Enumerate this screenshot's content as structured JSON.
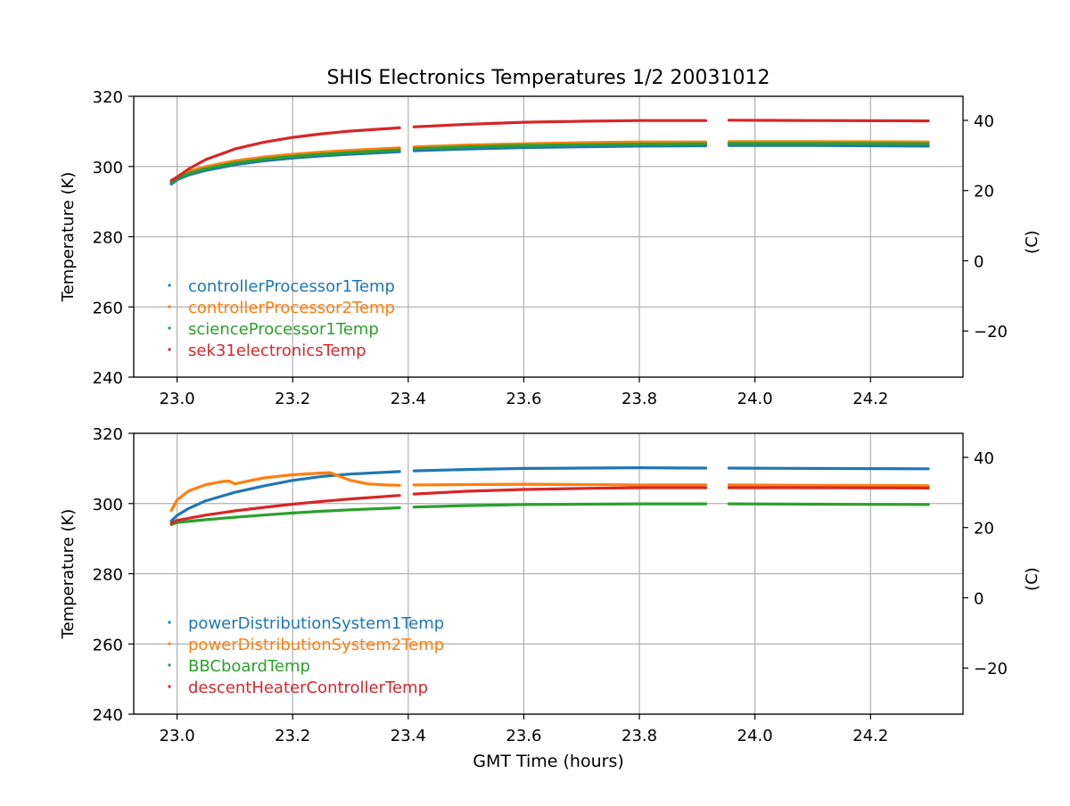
{
  "figure": {
    "title": "SHIS Electronics Temperatures 1/2 20031012",
    "xlabel": "GMT Time (hours)"
  },
  "chart_data": [
    {
      "type": "line",
      "ylabel": "Temperature (K)",
      "ylabel_right": "(C)",
      "xlim": [
        22.925,
        24.36
      ],
      "ylim": [
        240,
        320
      ],
      "ylim_right_celsius": [
        -33.15,
        46.85
      ],
      "xticks": [
        "23.0",
        "23.2",
        "23.4",
        "23.6",
        "23.8",
        "24.0",
        "24.2"
      ],
      "yticks": [
        "240",
        "260",
        "280",
        "300",
        "320"
      ],
      "yticks_right": [
        "−20",
        "0",
        "20",
        "40"
      ],
      "grid": true,
      "legend_position": "lower-left",
      "data_gaps_hours": [
        [
          23.385,
          23.41
        ],
        [
          23.915,
          23.955
        ]
      ],
      "series": [
        {
          "name": "controllerProcessor1Temp",
          "color": "#1f77b4",
          "x": [
            22.99,
            23.0,
            23.02,
            23.05,
            23.1,
            23.15,
            23.2,
            23.25,
            23.3,
            23.385,
            23.41,
            23.5,
            23.6,
            23.7,
            23.8,
            23.915,
            23.955,
            24.1,
            24.3
          ],
          "y": [
            295.0,
            296.2,
            297.6,
            298.9,
            300.5,
            301.6,
            302.4,
            303.0,
            303.5,
            304.2,
            304.5,
            305.0,
            305.4,
            305.6,
            305.8,
            305.9,
            306.0,
            306.0,
            305.8
          ]
        },
        {
          "name": "controllerProcessor2Temp",
          "color": "#ff7f0e",
          "x": [
            22.99,
            23.0,
            23.02,
            23.05,
            23.1,
            23.15,
            23.2,
            23.25,
            23.3,
            23.385,
            23.41,
            23.5,
            23.6,
            23.7,
            23.8,
            23.915,
            23.955,
            24.1,
            24.3
          ],
          "y": [
            295.8,
            297.0,
            298.6,
            300.0,
            301.6,
            302.7,
            303.5,
            304.1,
            304.6,
            305.3,
            305.6,
            306.1,
            306.5,
            306.8,
            307.0,
            307.0,
            307.1,
            307.1,
            307.0
          ]
        },
        {
          "name": "scienceProcessor1Temp",
          "color": "#2ca02c",
          "x": [
            22.99,
            23.0,
            23.02,
            23.05,
            23.1,
            23.15,
            23.2,
            23.25,
            23.3,
            23.385,
            23.41,
            23.5,
            23.6,
            23.7,
            23.8,
            23.915,
            23.955,
            24.1,
            24.3
          ],
          "y": [
            295.4,
            296.6,
            298.0,
            299.4,
            301.0,
            302.1,
            302.9,
            303.5,
            304.0,
            304.7,
            305.1,
            305.6,
            306.0,
            306.2,
            306.4,
            306.5,
            306.6,
            306.6,
            306.5
          ]
        },
        {
          "name": "sek31electronicsTemp",
          "color": "#d62728",
          "x": [
            22.99,
            23.0,
            23.02,
            23.05,
            23.1,
            23.15,
            23.2,
            23.25,
            23.3,
            23.385,
            23.41,
            23.5,
            23.6,
            23.7,
            23.8,
            23.915,
            23.955,
            24.1,
            24.3
          ],
          "y": [
            296.0,
            297.0,
            299.3,
            302.0,
            305.0,
            306.9,
            308.3,
            309.3,
            310.1,
            311.0,
            311.3,
            312.0,
            312.6,
            312.9,
            313.1,
            313.1,
            313.2,
            313.1,
            313.0
          ]
        }
      ]
    },
    {
      "type": "line",
      "ylabel": "Temperature (K)",
      "ylabel_right": "(C)",
      "xlim": [
        22.925,
        24.36
      ],
      "ylim": [
        240,
        320
      ],
      "ylim_right_celsius": [
        -33.15,
        46.85
      ],
      "xticks": [
        "23.0",
        "23.2",
        "23.4",
        "23.6",
        "23.8",
        "24.0",
        "24.2"
      ],
      "yticks": [
        "240",
        "260",
        "280",
        "300",
        "320"
      ],
      "yticks_right": [
        "−20",
        "0",
        "20",
        "40"
      ],
      "grid": true,
      "legend_position": "lower-left",
      "data_gaps_hours": [
        [
          23.385,
          23.41
        ],
        [
          23.915,
          23.955
        ]
      ],
      "series": [
        {
          "name": "powerDistributionSystem1Temp",
          "color": "#1f77b4",
          "x": [
            22.99,
            23.0,
            23.02,
            23.05,
            23.1,
            23.15,
            23.2,
            23.25,
            23.3,
            23.385,
            23.41,
            23.5,
            23.6,
            23.7,
            23.8,
            23.915,
            23.955,
            24.1,
            24.3
          ],
          "y": [
            295.0,
            296.6,
            298.6,
            300.8,
            303.2,
            305.0,
            306.6,
            307.7,
            308.4,
            309.1,
            309.3,
            309.7,
            310.0,
            310.1,
            310.2,
            310.1,
            310.1,
            310.0,
            309.9
          ]
        },
        {
          "name": "powerDistributionSystem2Temp",
          "color": "#ff7f0e",
          "x": [
            22.99,
            22.995,
            23.0,
            23.02,
            23.05,
            23.08,
            23.09,
            23.1,
            23.12,
            23.15,
            23.2,
            23.25,
            23.265,
            23.28,
            23.3,
            23.33,
            23.36,
            23.385,
            23.41,
            23.5,
            23.6,
            23.7,
            23.8,
            23.915,
            23.955,
            24.1,
            24.3
          ],
          "y": [
            298.0,
            299.5,
            301.0,
            303.6,
            305.4,
            306.3,
            306.4,
            305.6,
            306.3,
            307.3,
            308.2,
            308.7,
            308.8,
            307.8,
            306.6,
            305.6,
            305.3,
            305.2,
            305.3,
            305.4,
            305.5,
            305.4,
            305.3,
            305.3,
            305.3,
            305.2,
            305.1
          ]
        },
        {
          "name": "BBCboardTemp",
          "color": "#2ca02c",
          "x": [
            22.99,
            23.0,
            23.05,
            23.1,
            23.15,
            23.2,
            23.25,
            23.3,
            23.385,
            23.41,
            23.5,
            23.6,
            23.7,
            23.8,
            23.915,
            23.955,
            24.1,
            24.3
          ],
          "y": [
            294.0,
            294.6,
            295.4,
            296.1,
            296.7,
            297.3,
            297.8,
            298.2,
            298.8,
            299.0,
            299.4,
            299.7,
            299.8,
            299.9,
            299.9,
            299.9,
            299.8,
            299.7
          ]
        },
        {
          "name": "descentHeaterControllerTemp",
          "color": "#d62728",
          "x": [
            22.99,
            23.0,
            23.05,
            23.1,
            23.15,
            23.2,
            23.25,
            23.3,
            23.385,
            23.41,
            23.5,
            23.6,
            23.7,
            23.8,
            23.915,
            23.955,
            24.1,
            24.3
          ],
          "y": [
            294.3,
            295.2,
            296.7,
            297.9,
            298.9,
            299.8,
            300.6,
            301.3,
            302.3,
            302.7,
            303.5,
            304.0,
            304.3,
            304.5,
            304.5,
            304.5,
            304.5,
            304.4
          ]
        }
      ]
    }
  ]
}
